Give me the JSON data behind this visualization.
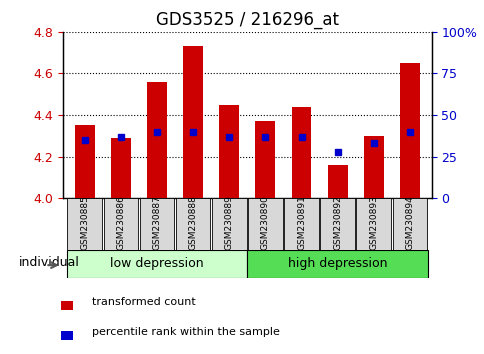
{
  "title": "GDS3525 / 216296_at",
  "samples": [
    "GSM230885",
    "GSM230886",
    "GSM230887",
    "GSM230888",
    "GSM230889",
    "GSM230890",
    "GSM230891",
    "GSM230892",
    "GSM230893",
    "GSM230894"
  ],
  "red_values": [
    4.35,
    4.29,
    4.56,
    4.73,
    4.45,
    4.37,
    4.44,
    4.16,
    4.3,
    4.65
  ],
  "blue_percentile": [
    35,
    37,
    40,
    40,
    37,
    37,
    37,
    28,
    33,
    40
  ],
  "ylim_left": [
    4.0,
    4.8
  ],
  "ylim_right": [
    0,
    100
  ],
  "yticks_left": [
    4.0,
    4.2,
    4.4,
    4.6,
    4.8
  ],
  "yticks_right": [
    0,
    25,
    50,
    75,
    100
  ],
  "ytick_labels_right": [
    "0",
    "25",
    "50",
    "75",
    "100%"
  ],
  "group1_label": "low depression",
  "group2_label": "high depression",
  "group1_indices": [
    0,
    1,
    2,
    3,
    4
  ],
  "group2_indices": [
    5,
    6,
    7,
    8,
    9
  ],
  "group1_color": "#ccffcc",
  "group2_color": "#55dd55",
  "individual_label": "individual",
  "legend1": "transformed count",
  "legend2": "percentile rank within the sample",
  "bar_color": "#cc0000",
  "dot_color": "#0000cc",
  "bar_width": 0.55,
  "base_value": 4.0,
  "title_fontsize": 12,
  "tick_label_color_left": "#cc0000",
  "tick_label_color_right": "#0000cc",
  "bg_gray": "#d8d8d8"
}
